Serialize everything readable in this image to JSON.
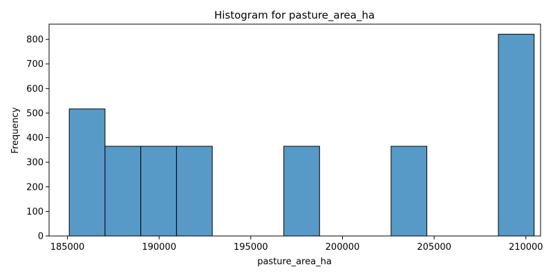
{
  "chart_data": {
    "type": "bar",
    "title": "Histogram for pasture_area_ha",
    "xlabel": "pasture_area_ha",
    "ylabel": "Frequency",
    "xlim": [
      184000,
      210800
    ],
    "ylim": [
      0,
      862
    ],
    "x_ticks": [
      185000,
      190000,
      195000,
      200000,
      205000,
      210000
    ],
    "y_ticks": [
      0,
      100,
      200,
      300,
      400,
      500,
      600,
      700,
      800
    ],
    "bins": [
      {
        "x0": 185100,
        "x1": 187050,
        "count": 517
      },
      {
        "x0": 187050,
        "x1": 189000,
        "count": 365
      },
      {
        "x0": 189000,
        "x1": 190950,
        "count": 365
      },
      {
        "x0": 190950,
        "x1": 192900,
        "count": 365
      },
      {
        "x0": 192900,
        "x1": 194850,
        "count": 0
      },
      {
        "x0": 194850,
        "x1": 196800,
        "count": 0
      },
      {
        "x0": 196800,
        "x1": 198750,
        "count": 365
      },
      {
        "x0": 198750,
        "x1": 200700,
        "count": 0
      },
      {
        "x0": 200700,
        "x1": 202650,
        "count": 0
      },
      {
        "x0": 202650,
        "x1": 204600,
        "count": 365
      },
      {
        "x0": 204600,
        "x1": 206550,
        "count": 0
      },
      {
        "x0": 206550,
        "x1": 208500,
        "count": 0
      },
      {
        "x0": 208500,
        "x1": 210450,
        "count": 821
      }
    ],
    "bar_color": "#5799c7",
    "edge_color": "#000000",
    "grid": false
  }
}
